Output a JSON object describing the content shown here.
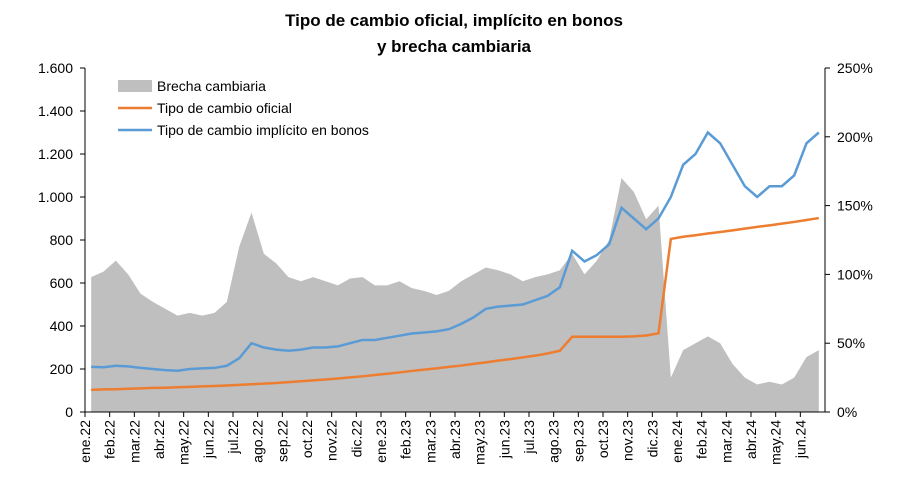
{
  "chart_data": {
    "type": "line",
    "title": [
      "Tipo de cambio oficial, implícito en bonos",
      "y brecha cambiaria"
    ],
    "categories": [
      "ene.22",
      null,
      "feb.22",
      null,
      "mar.22",
      null,
      "abr.22",
      null,
      "may.22",
      null,
      "jun.22",
      null,
      "jul.22",
      null,
      "ago.22",
      null,
      "sep.22",
      null,
      "oct.22",
      null,
      "nov.22",
      null,
      "dic.22",
      null,
      "ene.23",
      null,
      "feb.23",
      null,
      "mar.23",
      null,
      "abr.23",
      null,
      "may.23",
      null,
      "jun.23",
      null,
      "jul.23",
      null,
      "ago.23",
      null,
      "sep.23",
      null,
      "oct.23",
      null,
      "nov.23",
      null,
      "dic.23",
      null,
      "ene.24",
      null,
      "feb.24",
      null,
      "mar.24",
      null,
      "abr.24",
      null,
      "may.24",
      null,
      "jun.24",
      null
    ],
    "series": [
      {
        "name": "Brecha cambiaria",
        "color": "#bfbfbf",
        "axis": "y2",
        "kind": "area",
        "values": [
          98,
          102,
          110,
          100,
          86,
          80,
          75,
          70,
          72,
          70,
          72,
          80,
          120,
          145,
          115,
          108,
          98,
          95,
          98,
          95,
          92,
          97,
          98,
          92,
          92,
          95,
          90,
          88,
          85,
          88,
          95,
          100,
          105,
          103,
          100,
          95,
          98,
          100,
          103,
          115,
          100,
          110,
          125,
          170,
          160,
          140,
          150,
          25,
          45,
          50,
          55,
          50,
          35,
          25,
          20,
          22,
          20,
          25,
          40,
          45
        ]
      },
      {
        "name": "Tipo de cambio oficial",
        "color": "#ed7d31",
        "values": [
          103,
          105,
          106,
          108,
          110,
          112,
          113,
          115,
          117,
          119,
          121,
          123,
          126,
          129,
          132,
          135,
          139,
          143,
          147,
          151,
          156,
          161,
          166,
          172,
          178,
          184,
          191,
          197,
          203,
          210,
          216,
          224,
          231,
          239,
          246,
          254,
          262,
          272,
          285,
          350,
          350,
          350,
          350,
          350,
          352,
          356,
          366,
          805,
          815,
          822,
          830,
          837,
          845,
          853,
          861,
          868,
          876,
          884,
          893,
          902
        ]
      },
      {
        "name": "Tipo de cambio implícito en bonos",
        "color": "#5b9bd5",
        "values": [
          210,
          208,
          215,
          212,
          205,
          200,
          195,
          192,
          200,
          203,
          205,
          215,
          250,
          320,
          300,
          290,
          285,
          290,
          300,
          300,
          305,
          320,
          335,
          335,
          345,
          355,
          365,
          370,
          375,
          385,
          410,
          440,
          480,
          490,
          495,
          500,
          520,
          540,
          580,
          750,
          700,
          730,
          780,
          950,
          900,
          850,
          900,
          1000,
          1150,
          1200,
          1300,
          1250,
          1150,
          1050,
          1000,
          1050,
          1050,
          1100,
          1250,
          1300
        ]
      }
    ],
    "ylim": [
      0,
      1600
    ],
    "yticks": [
      0,
      200,
      400,
      600,
      800,
      {
        "value": 1000,
        "label": "1.000"
      },
      {
        "value": 1200,
        "label": "1.200"
      },
      {
        "value": 1400,
        "label": "1.400"
      },
      {
        "value": 1600,
        "label": "1.600"
      }
    ],
    "y2lim": [
      0,
      250
    ],
    "y2ticks": [
      {
        "value": 0,
        "label": "0%"
      },
      {
        "value": 50,
        "label": "50%"
      },
      {
        "value": 100,
        "label": "100%"
      },
      {
        "value": 150,
        "label": "150%"
      },
      {
        "value": 200,
        "label": "200%"
      },
      {
        "value": 250,
        "label": "250%"
      }
    ],
    "legend": "upper left"
  }
}
